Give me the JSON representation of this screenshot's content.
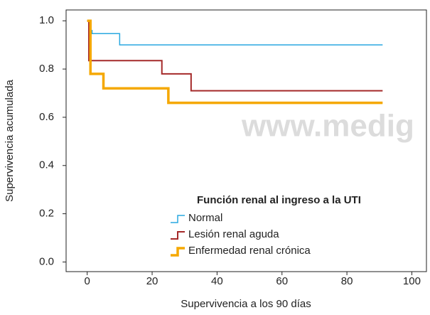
{
  "chart_data": {
    "type": "step",
    "xlabel": "Supervivencia a los 90 días",
    "ylabel": "Supervivencia acumulada",
    "watermark": "www.medig",
    "legend_title": "Función renal al ingreso a la UTI",
    "legend": "lower right",
    "xlim": [
      -6.5,
      104.5
    ],
    "ylim": [
      -0.04,
      1.045
    ],
    "xticks": [
      0,
      20,
      40,
      60,
      80,
      100
    ],
    "yticks": [
      {
        "value": 0,
        "label": "0.0"
      },
      0.2,
      0.4,
      0.6,
      0.8,
      {
        "value": 1,
        "label": "1.0"
      }
    ],
    "series": [
      {
        "name": "Normal",
        "color": "#29a8e0",
        "width": 1.5,
        "x": [
          0,
          0.5,
          1.5,
          10,
          91
        ],
        "values": [
          1.0,
          0.96,
          0.947,
          0.9,
          0.9
        ]
      },
      {
        "name": "Lesión renal aguda",
        "color": "#a52a2a",
        "width": 2,
        "x": [
          0,
          0.5,
          23,
          32,
          91
        ],
        "values": [
          1.0,
          0.835,
          0.78,
          0.71,
          0.71
        ]
      },
      {
        "name": "Enfermedad renal crónica",
        "color": "#f5a800",
        "width": 3.5,
        "x": [
          0,
          1,
          5,
          25,
          91
        ],
        "values": [
          1.0,
          0.78,
          0.72,
          0.66,
          0.66
        ]
      }
    ]
  }
}
